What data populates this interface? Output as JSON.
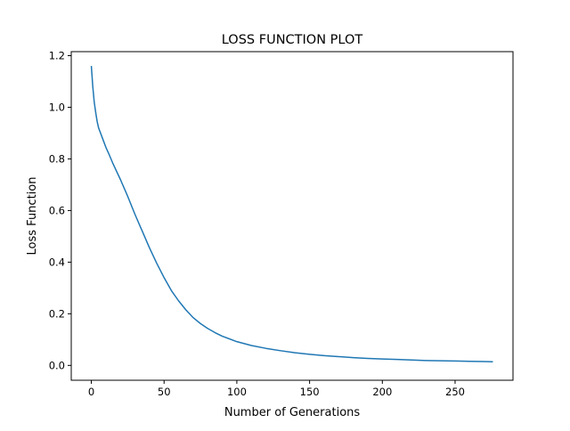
{
  "chart_data": {
    "type": "line",
    "title": "LOSS FUNCTION PLOT",
    "xlabel": "Number of Generations",
    "ylabel": "Loss Function",
    "xlim": [
      -13.8,
      289.8
    ],
    "ylim": [
      -0.0575,
      1.2155
    ],
    "xticks": [
      0,
      50,
      100,
      150,
      200,
      250
    ],
    "yticks": [
      0.0,
      0.2,
      0.4,
      0.6,
      0.8,
      1.0,
      1.2
    ],
    "xtick_labels": [
      "0",
      "50",
      "100",
      "150",
      "200",
      "250"
    ],
    "ytick_labels": [
      "0.0",
      "0.2",
      "0.4",
      "0.6",
      "0.8",
      "1.0",
      "1.2"
    ],
    "grid": false,
    "legend": "none",
    "series": [
      {
        "color": "#1f77b4",
        "x": [
          0,
          1,
          2,
          3,
          4,
          5,
          6,
          8,
          10,
          12,
          15,
          20,
          25,
          30,
          35,
          40,
          45,
          50,
          55,
          60,
          65,
          70,
          75,
          80,
          85,
          90,
          100,
          110,
          120,
          130,
          140,
          150,
          160,
          170,
          180,
          190,
          200,
          210,
          220,
          230,
          240,
          250,
          260,
          270,
          276
        ],
        "y": [
          1.16,
          1.08,
          1.02,
          0.98,
          0.945,
          0.92,
          0.905,
          0.875,
          0.845,
          0.82,
          0.78,
          0.72,
          0.655,
          0.585,
          0.52,
          0.455,
          0.395,
          0.34,
          0.29,
          0.25,
          0.215,
          0.185,
          0.162,
          0.143,
          0.127,
          0.113,
          0.092,
          0.077,
          0.066,
          0.057,
          0.049,
          0.043,
          0.038,
          0.034,
          0.03,
          0.027,
          0.025,
          0.023,
          0.021,
          0.019,
          0.018,
          0.017,
          0.016,
          0.015,
          0.014
        ]
      }
    ]
  }
}
